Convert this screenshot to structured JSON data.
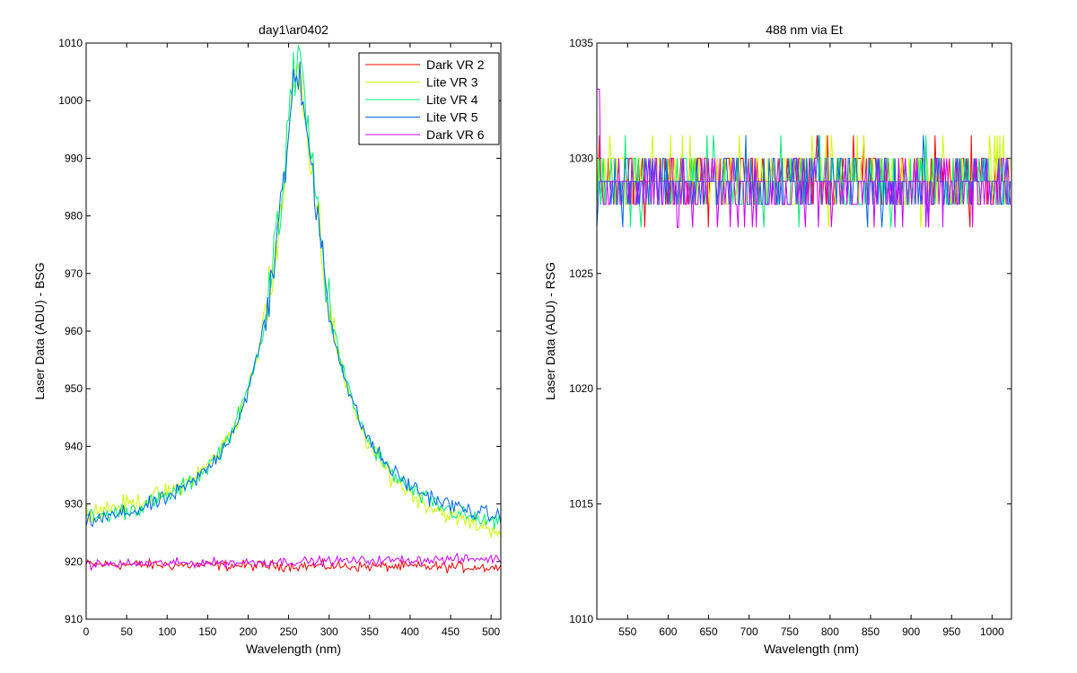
{
  "chart_data": [
    {
      "type": "line",
      "title": "day1\\ar0402",
      "xlabel": "Wavelength (nm)",
      "ylabel": "Laser Data (ADU) - BSG",
      "xlim": [
        0,
        512
      ],
      "ylim": [
        910,
        1010
      ],
      "xticks": [
        0,
        50,
        100,
        150,
        200,
        250,
        300,
        350,
        400,
        450,
        500
      ],
      "yticks": [
        910,
        920,
        930,
        940,
        950,
        960,
        970,
        980,
        990,
        1000,
        1010
      ],
      "grid": false,
      "legend_position": "top-right",
      "series": [
        {
          "name": "Dark VR 2",
          "color": "#ff0000",
          "shape": "flat",
          "base": 919.5,
          "end": 919.0,
          "noise": 0.9
        },
        {
          "name": "Lite VR 3",
          "color": "#ccff00",
          "shape": "peak",
          "base": 925.0,
          "end": 921.0,
          "peak_x": 262,
          "peak": 1006,
          "noise": 1.6
        },
        {
          "name": "Lite VR 4",
          "color": "#00ee77",
          "shape": "peak",
          "base": 923.5,
          "end": 922.0,
          "peak_x": 262,
          "peak": 1008,
          "noise": 1.5
        },
        {
          "name": "Lite VR 5",
          "color": "#0066ee",
          "shape": "peak",
          "base": 923.0,
          "end": 923.5,
          "peak_x": 262,
          "peak": 1006,
          "noise": 1.4
        },
        {
          "name": "Dark VR 6",
          "color": "#cc00ff",
          "shape": "flat",
          "base": 919.5,
          "end": 920.5,
          "noise": 0.8
        }
      ]
    },
    {
      "type": "line",
      "title": "488 nm via Et",
      "xlabel": "Wavelength (nm)",
      "ylabel": "Laser Data (ADU) - RSG",
      "xlim": [
        512,
        1024
      ],
      "ylim": [
        1010,
        1035
      ],
      "xticks": [
        550,
        600,
        650,
        700,
        750,
        800,
        850,
        900,
        950,
        1000
      ],
      "yticks": [
        1010,
        1015,
        1020,
        1025,
        1030,
        1035
      ],
      "grid": false,
      "series": [
        {
          "color": "#ff0000",
          "base": 1029.2,
          "spread": 1.0
        },
        {
          "color": "#ccff00",
          "base": 1029.2,
          "spread": 1.1
        },
        {
          "color": "#00ee77",
          "base": 1029.0,
          "spread": 1.1
        },
        {
          "color": "#0066ee",
          "base": 1028.9,
          "spread": 1.0
        },
        {
          "color": "#cc00ff",
          "base": 1028.7,
          "spread": 1.0
        }
      ]
    }
  ]
}
